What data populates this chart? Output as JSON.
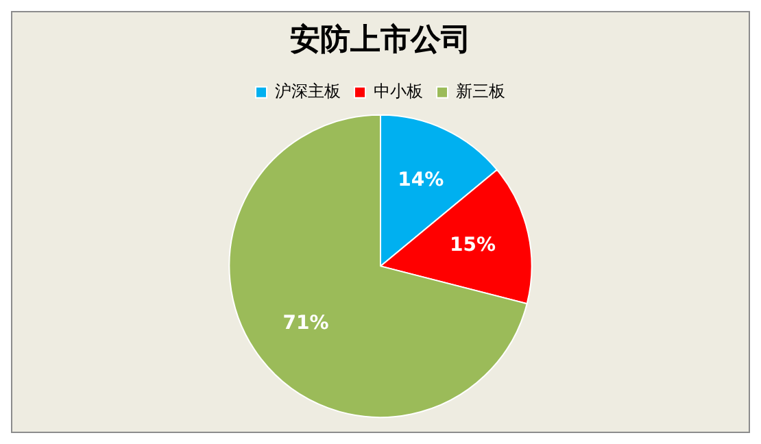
{
  "chart_data": {
    "type": "pie",
    "title": "安防上市公司",
    "categories": [
      "沪深主板",
      "中小板",
      "新三板"
    ],
    "values": [
      14,
      15,
      71
    ],
    "colors": [
      "#00b0f0",
      "#ff0000",
      "#9bbb59"
    ],
    "legend": "top",
    "value_labels": [
      "14%",
      "15%",
      "71%"
    ]
  }
}
